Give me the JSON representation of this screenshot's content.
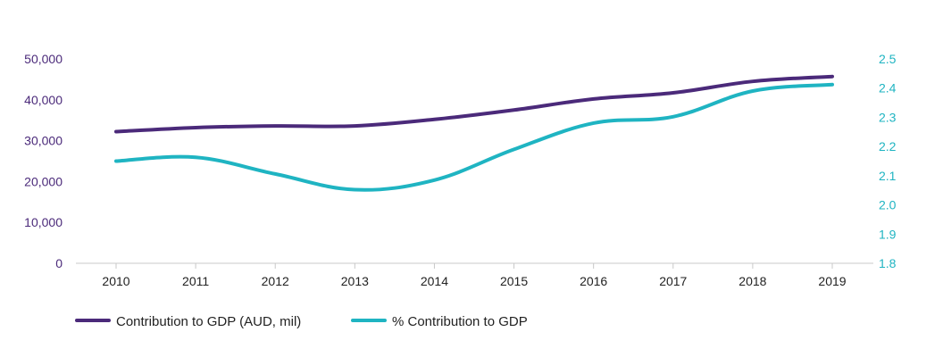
{
  "chart_data": {
    "type": "line",
    "title": "",
    "x": [
      "2010",
      "2011",
      "2012",
      "2013",
      "2014",
      "2015",
      "2016",
      "2017",
      "2018",
      "2019"
    ],
    "y_left": {
      "label": "",
      "lim": [
        0,
        50000
      ],
      "ticks": [
        0,
        10000,
        20000,
        30000,
        40000,
        50000
      ],
      "tick_labels": [
        "0",
        "10,000",
        "20,000",
        "30,000",
        "40,000",
        "50,000"
      ]
    },
    "y_right": {
      "label": "",
      "lim": [
        1.8,
        2.5
      ],
      "ticks": [
        1.8,
        1.9,
        2.0,
        2.1,
        2.2,
        2.3,
        2.4,
        2.5
      ],
      "tick_labels": [
        "1.8",
        "1.9",
        "2.0",
        "2.1",
        "2.2",
        "2.3",
        "2.4",
        "2.5"
      ]
    },
    "series": [
      {
        "name": "Contribution to GDP (AUD, mil)",
        "axis": "left",
        "color": "#4b2a7a",
        "values": [
          32200,
          33200,
          33600,
          33600,
          35200,
          37500,
          40200,
          41700,
          44500,
          45700
        ]
      },
      {
        "name": "% Contribution to GDP",
        "axis": "right",
        "color": "#1fb4c2",
        "values": [
          2.15,
          2.163,
          2.106,
          2.052,
          2.085,
          2.19,
          2.28,
          2.302,
          2.39,
          2.412
        ]
      }
    ],
    "grid": false,
    "legend": "bottom-left"
  }
}
